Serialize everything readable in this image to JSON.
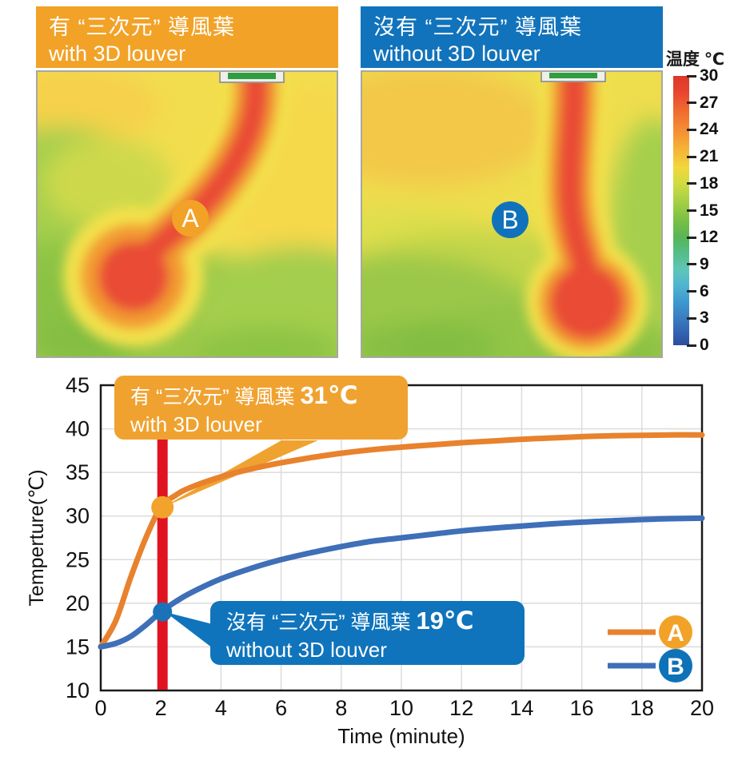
{
  "panels": {
    "left": {
      "title_line1": "有 “三次元” 導風葉",
      "title_line2": "with 3D louver",
      "marker": "A"
    },
    "right": {
      "title_line1": "沒有 “三次元” 導風葉",
      "title_line2": "without 3D louver",
      "marker": "B"
    }
  },
  "colorbar": {
    "title": "温度 ℃",
    "ticks": [
      "30",
      "27",
      "24",
      "21",
      "18",
      "15",
      "12",
      "9",
      "6",
      "3",
      "0"
    ]
  },
  "callouts": {
    "a": {
      "cjk": "有 “三次元” 導風葉",
      "temp": "31℃",
      "en": "with 3D louver"
    },
    "b": {
      "cjk": "沒有 “三次元” 導風葉",
      "temp": "19℃",
      "en": "without 3D louver"
    }
  },
  "chart_data": {
    "type": "line",
    "title": "",
    "xlabel": "Time (minute)",
    "ylabel": "Temperture(℃)",
    "xlim": [
      0,
      20
    ],
    "ylim": [
      10,
      45
    ],
    "xticks": [
      0,
      2,
      4,
      6,
      8,
      10,
      12,
      14,
      16,
      18,
      20
    ],
    "yticks": [
      10,
      15,
      20,
      25,
      30,
      35,
      40,
      45
    ],
    "grid": true,
    "legend_position": "inside bottom-right",
    "x": [
      0,
      0.5,
      1,
      1.5,
      2,
      2.5,
      3,
      4,
      5,
      6,
      7,
      8,
      9,
      10,
      11,
      12,
      13,
      14,
      15,
      16,
      17,
      18,
      19,
      20
    ],
    "series": [
      {
        "name": "A",
        "color": "#e8822d",
        "marker_color": "#f2a32c",
        "values": [
          15,
          18,
          23,
          27.5,
          31,
          32.4,
          33.3,
          34.5,
          35.4,
          36.1,
          36.7,
          37.2,
          37.6,
          37.9,
          38.15,
          38.4,
          38.6,
          38.8,
          38.95,
          39.1,
          39.2,
          39.25,
          39.3,
          39.3
        ],
        "annotation": {
          "x": 2,
          "y": 31,
          "label": "有 “三次元” 導風葉 31℃ with 3D louver"
        }
      },
      {
        "name": "B",
        "color": "#3e6fb8",
        "marker_color": "#1b72b8",
        "values": [
          15,
          15.4,
          16.2,
          17.5,
          19,
          20.2,
          21.2,
          22.8,
          24,
          25,
          25.8,
          26.5,
          27.1,
          27.5,
          27.9,
          28.3,
          28.6,
          28.85,
          29.1,
          29.3,
          29.45,
          29.6,
          29.7,
          29.75
        ],
        "annotation": {
          "x": 2,
          "y": 19,
          "label": "沒有 “三次元” 導風葉 19℃ without 3D louver"
        }
      }
    ],
    "highlight_line": {
      "x": 2,
      "color": "#e01321"
    },
    "legend": [
      {
        "label": "A",
        "line_color": "#e8822d",
        "circle_color": "#f2a227"
      },
      {
        "label": "B",
        "line_color": "#3e6fb8",
        "circle_color": "#0e72b8"
      }
    ]
  },
  "colors": {
    "header_orange": "#f2a227",
    "header_blue": "#1173bb",
    "callout_orange": "#f0a230",
    "callout_blue": "#0f74bc",
    "red_marker_line": "#e01321"
  }
}
